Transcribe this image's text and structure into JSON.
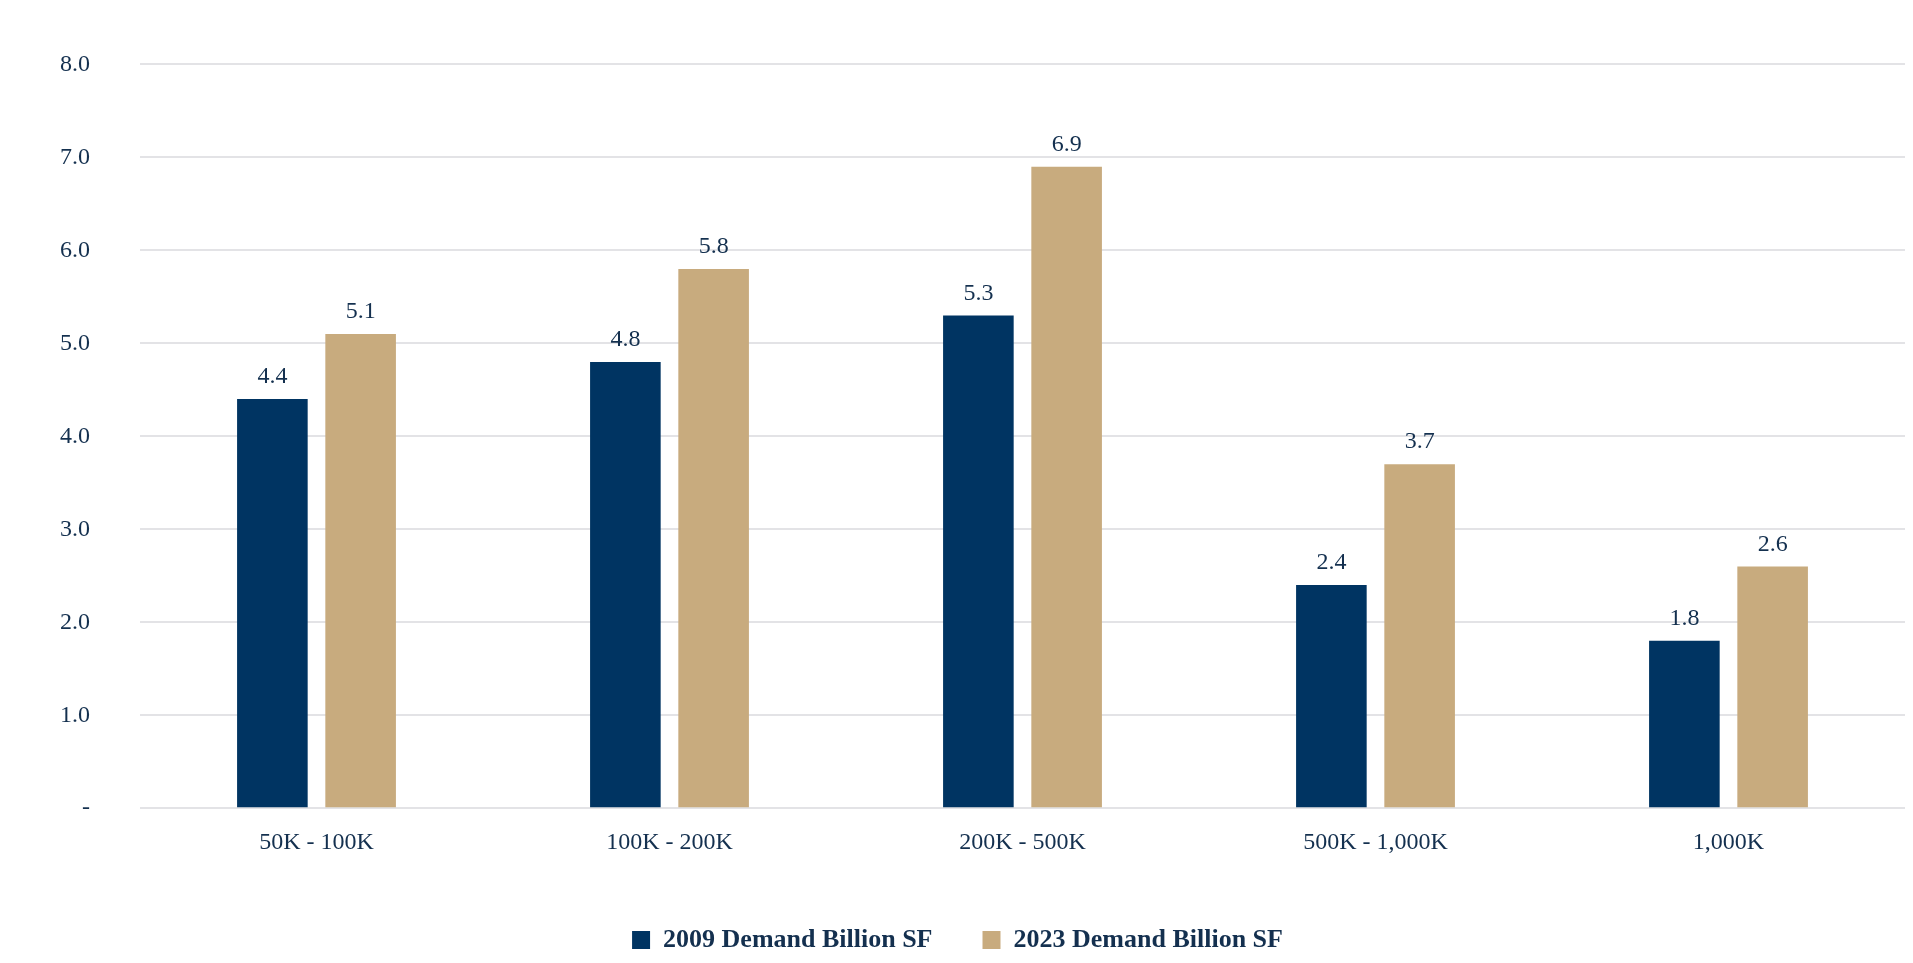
{
  "chart_data": {
    "type": "bar",
    "categories": [
      "50K - 100K",
      "100K - 200K",
      "200K - 500K",
      "500K - 1,000K",
      "1,000K"
    ],
    "series": [
      {
        "name": "2009 Demand Billion SF",
        "color": "#003462",
        "values": [
          4.4,
          4.8,
          5.3,
          2.4,
          1.8
        ]
      },
      {
        "name": "2023 Demand Billion SF",
        "color": "#c8ab7e",
        "values": [
          5.1,
          5.8,
          6.9,
          3.7,
          2.6
        ]
      }
    ],
    "ylim": [
      0,
      8
    ],
    "yticks": [
      {
        "value": 0,
        "label": "-"
      },
      {
        "value": 1,
        "label": "1.0"
      },
      {
        "value": 2,
        "label": "2.0"
      },
      {
        "value": 3,
        "label": "3.0"
      },
      {
        "value": 4,
        "label": "4.0"
      },
      {
        "value": 5,
        "label": "5.0"
      },
      {
        "value": 6,
        "label": "6.0"
      },
      {
        "value": 7,
        "label": "7.0"
      },
      {
        "value": 8,
        "label": "8.0"
      }
    ],
    "grid": "y",
    "legend": "bottom",
    "data_labels": true
  }
}
